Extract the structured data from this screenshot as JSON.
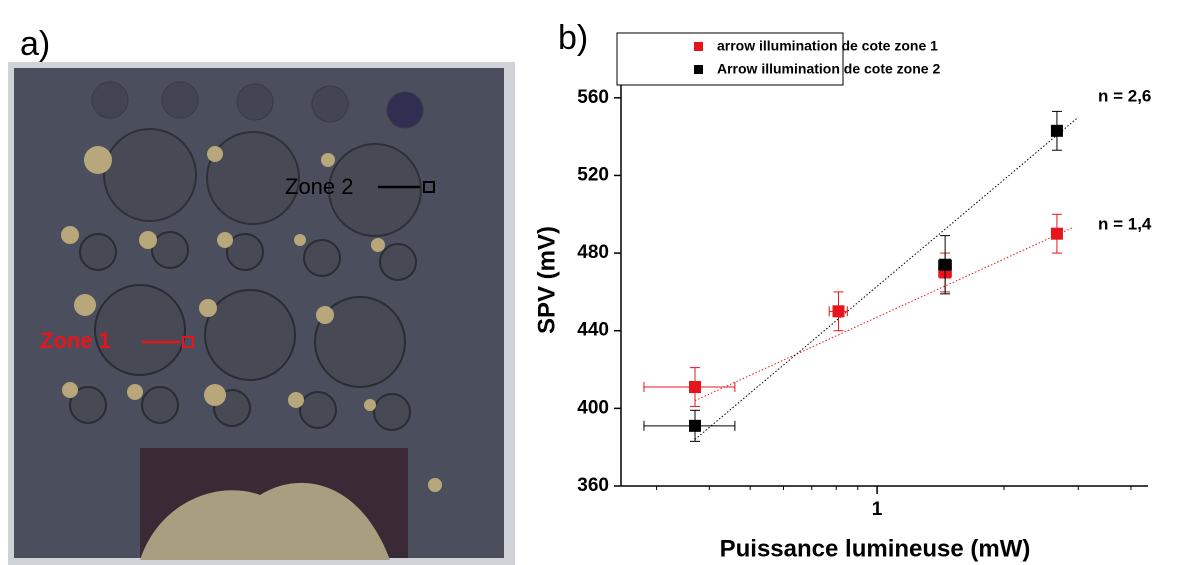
{
  "figure": {
    "panel_a": {
      "label": "a)",
      "zones": [
        "Zone 1",
        "Zone 2"
      ]
    }
  },
  "chart_data": {
    "type": "scatter",
    "panel_label": "b)",
    "x_label": "Puissance lumineuse (mW)",
    "y_label": "SPV (mV)",
    "xscale": "log",
    "xlim": [
      0.247,
      4.39
    ],
    "xticks": [
      1
    ],
    "xminor_ticks": [
      0.3,
      0.4,
      0.5,
      0.6,
      0.7,
      0.8,
      0.9,
      2,
      3,
      4
    ],
    "ylim": [
      360,
      580
    ],
    "yticks": [
      360,
      400,
      440,
      480,
      520,
      560
    ],
    "legend": "top-left",
    "series": [
      {
        "name": "arrow illumination de cote zone 1",
        "color": "#e8141b",
        "x": [
          0.37,
          0.81,
          1.45,
          2.67
        ],
        "values": [
          411,
          450,
          470,
          490
        ],
        "errors": [
          10,
          10,
          10,
          10
        ],
        "x_errors": [
          0.09,
          0.04,
          0.05,
          0
        ]
      },
      {
        "name": "Arrow illumination de cote zone 2",
        "color": "#000000",
        "x": [
          0.37,
          1.45,
          2.67
        ],
        "values": [
          391,
          474,
          543
        ],
        "errors": [
          8,
          15,
          10
        ],
        "x_errors": [
          0.09,
          0.05,
          0
        ]
      }
    ],
    "fits": [
      {
        "color": "#e8141b",
        "x": [
          0.37,
          2.9
        ],
        "values": [
          404,
          493
        ],
        "annotation": "n = 1,4"
      },
      {
        "color": "#000000",
        "x": [
          0.37,
          3.0
        ],
        "values": [
          384,
          550
        ],
        "annotation": "n = 2,6"
      }
    ]
  }
}
